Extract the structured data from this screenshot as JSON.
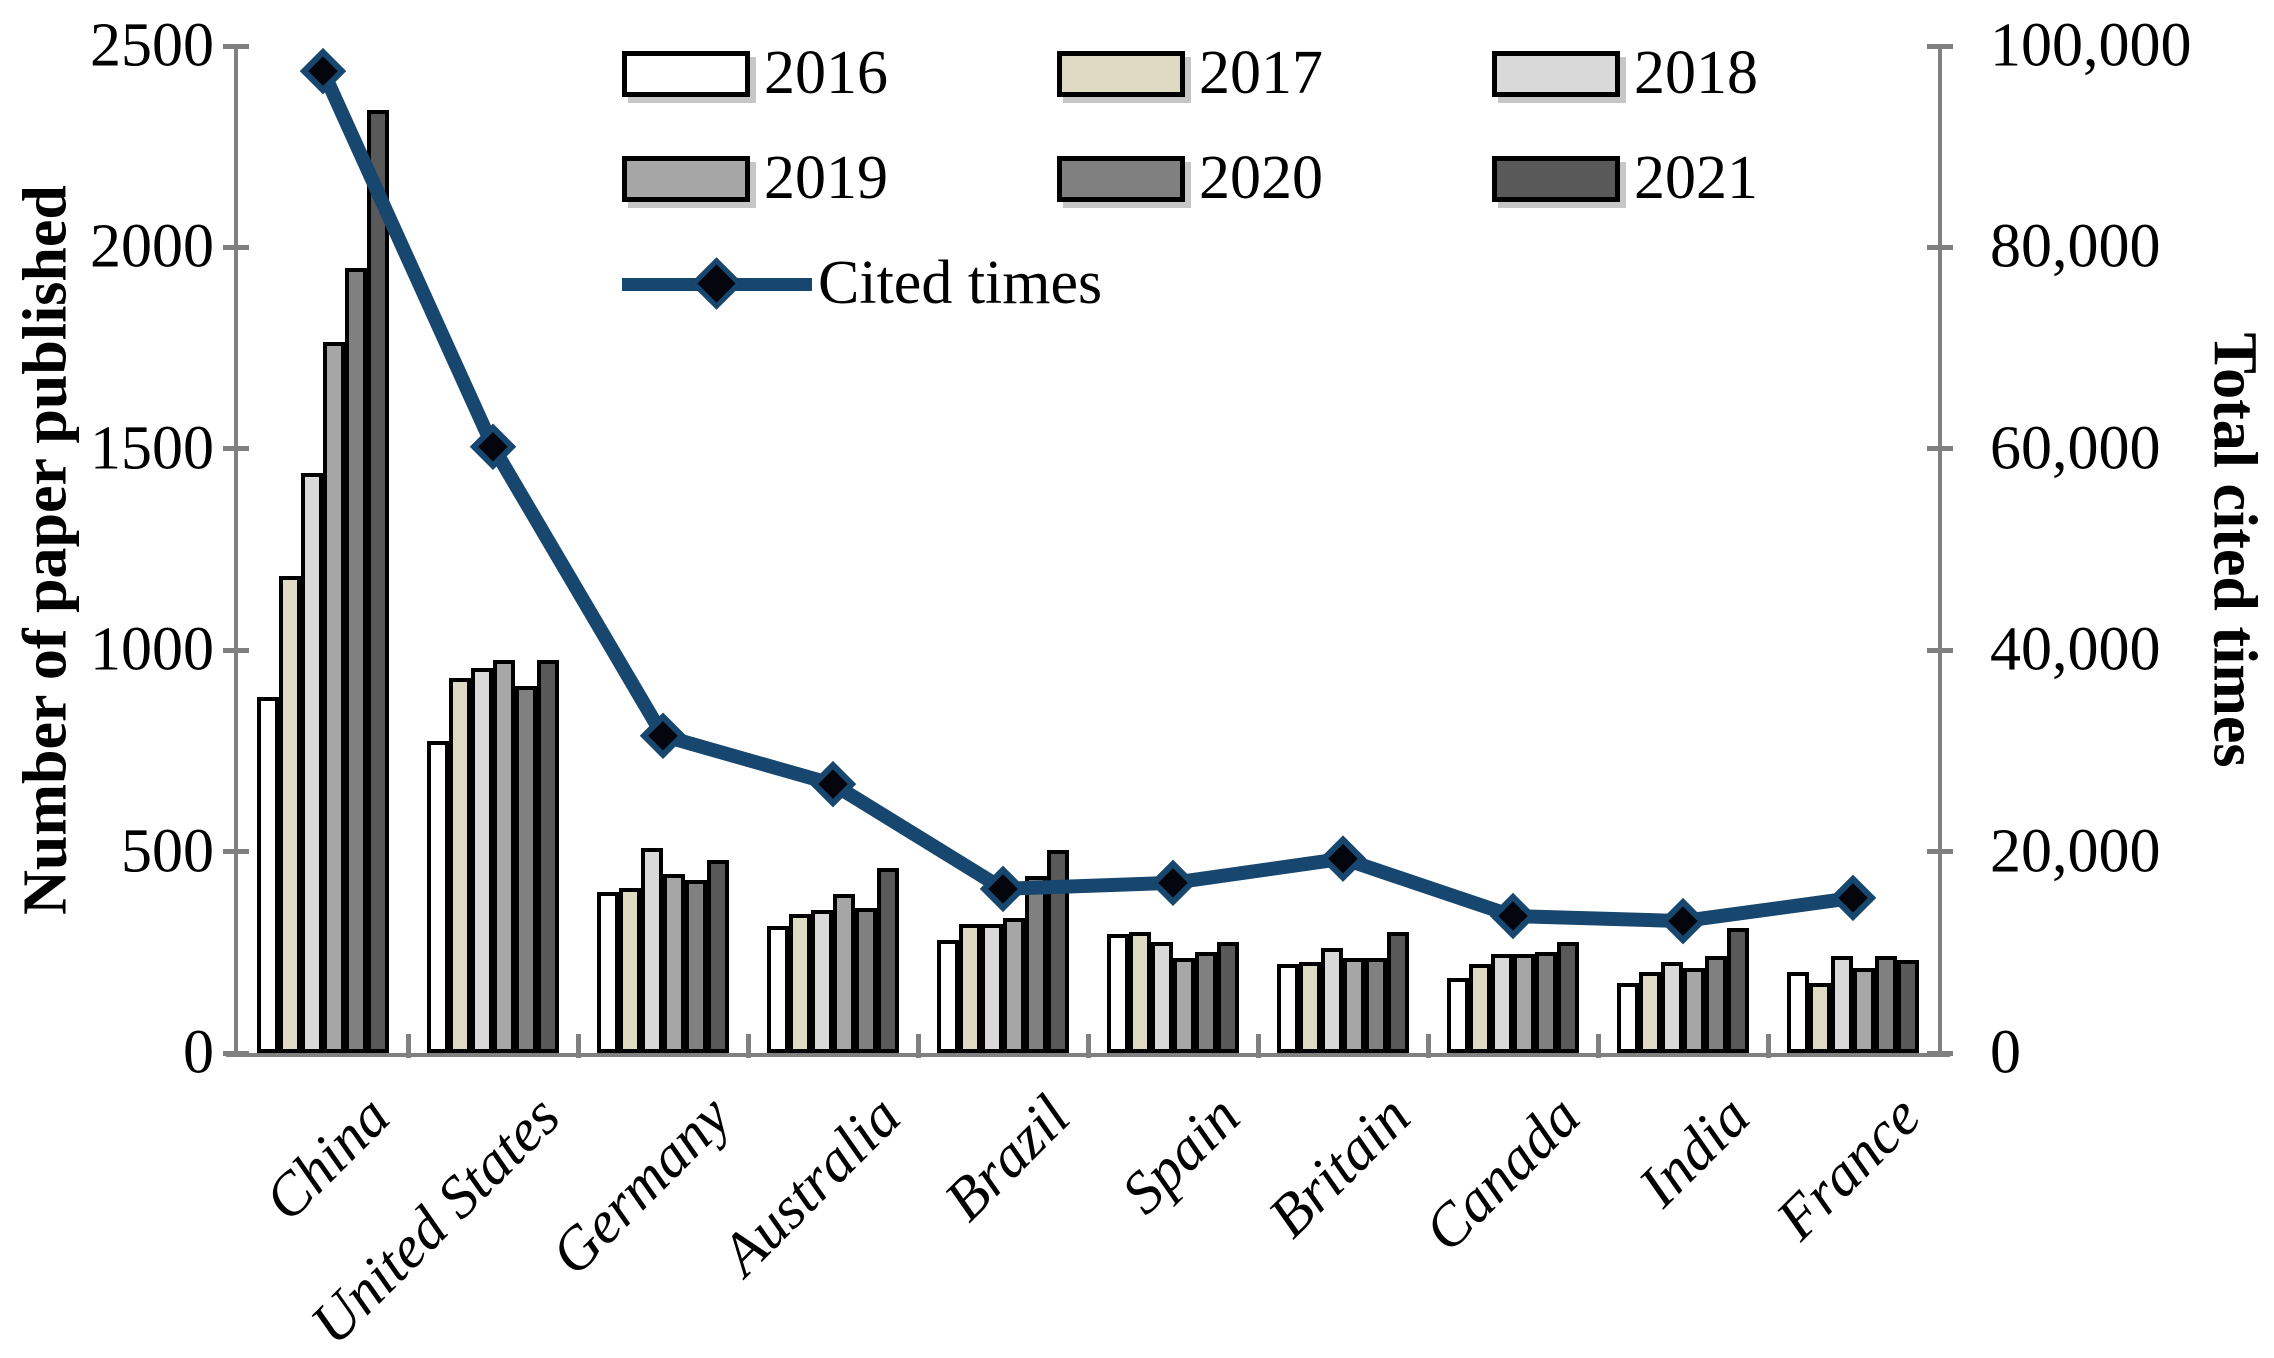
{
  "chart_data": {
    "type": "bar+line",
    "title": "",
    "categories": [
      "China",
      "United States",
      "Germany",
      "Australia",
      "Brazil",
      "Spain",
      "Britain",
      "Canada",
      "India",
      "France"
    ],
    "series": [
      {
        "name": "2016",
        "color": "#ffffff",
        "values": [
          885,
          775,
          400,
          315,
          280,
          295,
          220,
          185,
          175,
          200
        ]
      },
      {
        "name": "2017",
        "color": "#ddd9c3",
        "values": [
          1185,
          930,
          410,
          345,
          320,
          300,
          225,
          220,
          200,
          175
        ]
      },
      {
        "name": "2018",
        "color": "#d9d9d9",
        "values": [
          1440,
          955,
          510,
          355,
          320,
          275,
          260,
          245,
          225,
          240
        ]
      },
      {
        "name": "2019",
        "color": "#a6a6a6",
        "values": [
          1765,
          975,
          445,
          395,
          335,
          235,
          235,
          245,
          210,
          210
        ]
      },
      {
        "name": "2020",
        "color": "#808080",
        "values": [
          1950,
          910,
          430,
          360,
          440,
          250,
          235,
          250,
          240,
          240
        ]
      },
      {
        "name": "2021",
        "color": "#595959",
        "values": [
          2340,
          975,
          480,
          460,
          505,
          275,
          300,
          275,
          310,
          230
        ]
      }
    ],
    "line_series": {
      "name": "Cited times",
      "color": "#17466e",
      "marker": "diamond",
      "marker_color": "#05060d",
      "values": [
        97500,
        60200,
        31500,
        26700,
        16300,
        16900,
        19300,
        13600,
        13100,
        15400
      ]
    },
    "ylabel_left": "Number of paper published",
    "ylabel_right": "Total cited times",
    "xlabel": "",
    "left_axis": {
      "min": 0,
      "max": 2500,
      "step": 500,
      "tick_labels": [
        "0",
        "500",
        "1000",
        "1500",
        "2000",
        "2500"
      ]
    },
    "right_axis": {
      "min": 0,
      "max": 100000,
      "step": 20000,
      "tick_labels": [
        "0",
        "20,000",
        "40,000",
        "60,000",
        "80,000",
        "100,000"
      ]
    },
    "grid": false,
    "legend_position": "top-inside"
  },
  "styles": {
    "axis_color": "#808080",
    "bar_border_color": "#000000",
    "text_color": "#000000"
  }
}
